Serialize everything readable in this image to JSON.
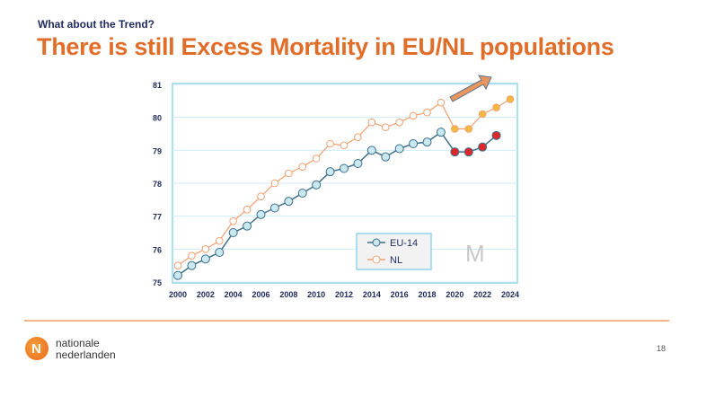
{
  "header": {
    "subtitle": "What about the Trend?",
    "title": "There is still Excess Mortality in EU/NL populations"
  },
  "footer": {
    "brand_line1": "nationale",
    "brand_line2": "nederlanden",
    "page_number": "18"
  },
  "colors": {
    "title": "#e06e2a",
    "eu_line": "#3d6f8a",
    "eu_marker": "#c9e8f0",
    "nl_line": "#f0a070",
    "nl_marker_fill": "#ffffff",
    "nl_highlight": "#f5b942",
    "eu_highlight": "#e0262a",
    "arrow": "#e8955e"
  },
  "chart_data": {
    "type": "line",
    "title": "",
    "xlabel": "",
    "ylabel": "",
    "x": [
      2000,
      2001,
      2002,
      2003,
      2004,
      2005,
      2006,
      2007,
      2008,
      2009,
      2010,
      2011,
      2012,
      2013,
      2014,
      2015,
      2016,
      2017,
      2018,
      2019,
      2020,
      2021,
      2022,
      2023,
      2024
    ],
    "xticks": [
      "2000",
      "2002",
      "2004",
      "2006",
      "2008",
      "2010",
      "2012",
      "2014",
      "2016",
      "2018",
      "2020",
      "2022",
      "2024"
    ],
    "yticks": [
      "75",
      "76",
      "77",
      "78",
      "79",
      "80",
      "81"
    ],
    "xlim": [
      2000,
      2024
    ],
    "ylim": [
      75,
      81
    ],
    "grid": true,
    "legend_position": "bottom-right",
    "series": [
      {
        "name": "EU-14",
        "values": [
          75.2,
          75.5,
          75.7,
          75.9,
          76.5,
          76.7,
          77.05,
          77.25,
          77.45,
          77.7,
          77.95,
          78.35,
          78.45,
          78.6,
          79.0,
          78.8,
          79.05,
          79.2,
          79.25,
          79.55,
          78.95,
          78.95,
          79.1,
          79.45,
          null
        ],
        "highlight_from": 2020
      },
      {
        "name": "NL",
        "values": [
          75.5,
          75.8,
          76.0,
          76.25,
          76.85,
          77.2,
          77.6,
          78.0,
          78.3,
          78.5,
          78.75,
          79.2,
          79.15,
          79.4,
          79.85,
          79.7,
          79.85,
          80.05,
          80.15,
          80.45,
          79.65,
          79.65,
          80.1,
          80.3,
          80.55
        ],
        "highlight_from": 2020
      }
    ],
    "watermark": "M"
  }
}
